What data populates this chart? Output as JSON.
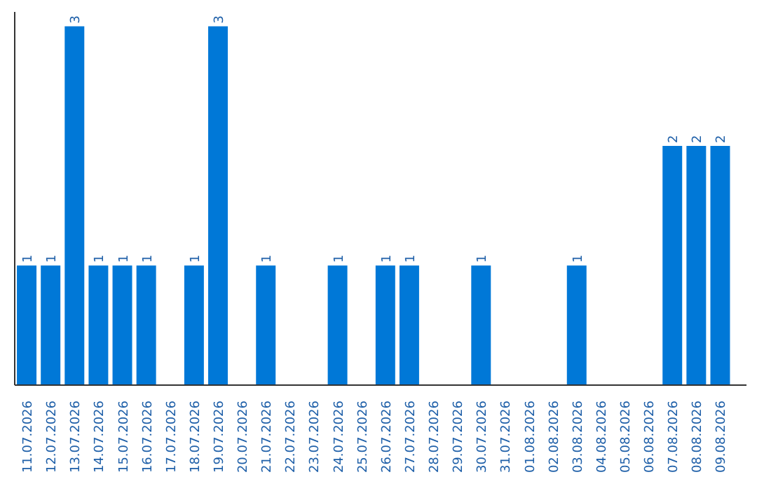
{
  "chart_data": {
    "type": "bar",
    "categories": [
      "11.07.2026",
      "12.07.2026",
      "13.07.2026",
      "14.07.2026",
      "15.07.2026",
      "16.07.2026",
      "17.07.2026",
      "18.07.2026",
      "19.07.2026",
      "20.07.2026",
      "21.07.2026",
      "22.07.2026",
      "23.07.2026",
      "24.07.2026",
      "25.07.2026",
      "26.07.2026",
      "27.07.2026",
      "28.07.2026",
      "29.07.2026",
      "30.07.2026",
      "31.07.2026",
      "01.08.2026",
      "02.08.2026",
      "03.08.2026",
      "04.08.2026",
      "05.08.2026",
      "06.08.2026",
      "07.08.2026",
      "08.08.2026",
      "09.08.2026"
    ],
    "values": [
      1,
      1,
      3,
      1,
      1,
      1,
      null,
      1,
      3,
      null,
      1,
      null,
      null,
      1,
      null,
      1,
      1,
      null,
      null,
      1,
      null,
      null,
      null,
      1,
      null,
      null,
      null,
      2,
      2,
      2
    ],
    "color": "#0078d7",
    "data_labels": true
  }
}
